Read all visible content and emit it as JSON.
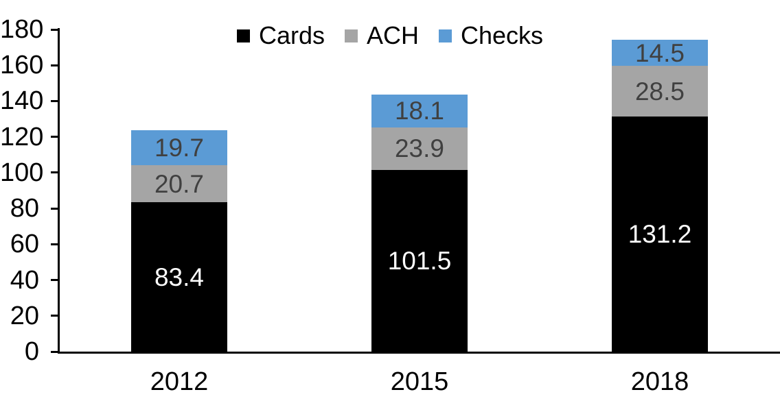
{
  "chart_data": {
    "type": "bar",
    "stacked": true,
    "title": "",
    "xlabel": "",
    "ylabel": "",
    "categories": [
      "2012",
      "2015",
      "2018"
    ],
    "series": [
      {
        "name": "Cards",
        "color": "#000000",
        "label_color": "#ffffff",
        "values": [
          83.4,
          101.5,
          131.2
        ]
      },
      {
        "name": "ACH",
        "color": "#a5a5a5",
        "label_color": "#404040",
        "values": [
          20.7,
          23.9,
          28.5
        ]
      },
      {
        "name": "Checks",
        "color": "#5b9bd5",
        "label_color": "#404040",
        "values": [
          19.7,
          18.1,
          14.5
        ]
      }
    ],
    "totals": [
      123.8,
      143.5,
      174.2
    ],
    "ylim": [
      0,
      180
    ],
    "ytick_step": 20,
    "yticks": [
      0,
      20,
      40,
      60,
      80,
      100,
      120,
      140,
      160,
      180
    ],
    "grid": false,
    "legend_position": "top-center",
    "axis_color": "#000000"
  }
}
